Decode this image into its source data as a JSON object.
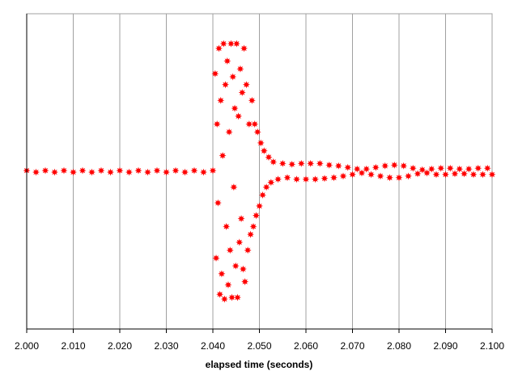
{
  "chart_data": {
    "type": "scatter",
    "x_label": "elapsed time (seconds)",
    "color": "#ff0000",
    "grid": true,
    "xlim": [
      2,
      2.1
    ],
    "ylim": [
      -1,
      1
    ],
    "xticks": [
      {
        "value": 2,
        "label": "2.000"
      },
      {
        "value": 2.01,
        "label": "2.010"
      },
      {
        "value": 2.02,
        "label": "2.020"
      },
      {
        "value": 2.03,
        "label": "2.030"
      },
      {
        "value": 2.04,
        "label": "2.040"
      },
      {
        "value": 2.05,
        "label": "2.050"
      },
      {
        "value": 2.06,
        "label": "2.060"
      },
      {
        "value": 2.07,
        "label": "2.070"
      },
      {
        "value": 2.08,
        "label": "2.080"
      },
      {
        "value": 2.09,
        "label": "2.090"
      },
      {
        "value": 2.1,
        "label": "2.100"
      }
    ],
    "x": [
      2,
      2.002,
      2.004,
      2.006,
      2.008,
      2.01,
      2.012,
      2.014,
      2.016,
      2.018,
      2.02,
      2.022,
      2.024,
      2.026,
      2.028,
      2.03,
      2.032,
      2.034,
      2.036,
      2.038,
      2.04,
      2.0405,
      2.0407,
      2.0409,
      2.0411,
      2.0413,
      2.0415,
      2.0417,
      2.0419,
      2.0421,
      2.0423,
      2.0425,
      2.0427,
      2.0429,
      2.0431,
      2.0433,
      2.0435,
      2.0437,
      2.0439,
      2.0441,
      2.0443,
      2.0445,
      2.0447,
      2.0449,
      2.0451,
      2.0453,
      2.0455,
      2.0457,
      2.0459,
      2.0461,
      2.0463,
      2.0465,
      2.0467,
      2.0469,
      2.0472,
      2.0475,
      2.0478,
      2.0481,
      2.0484,
      2.0487,
      2.049,
      2.0493,
      2.0496,
      2.05,
      2.0503,
      2.0507,
      2.051,
      2.0515,
      2.052,
      2.0525,
      2.053,
      2.054,
      2.055,
      2.056,
      2.057,
      2.058,
      2.059,
      2.06,
      2.061,
      2.062,
      2.063,
      2.064,
      2.065,
      2.066,
      2.067,
      2.068,
      2.069,
      2.07,
      2.071,
      2.072,
      2.073,
      2.074,
      2.075,
      2.076,
      2.077,
      2.078,
      2.079,
      2.08,
      2.081,
      2.082,
      2.083,
      2.084,
      2.085,
      2.086,
      2.087,
      2.088,
      2.089,
      2.09,
      2.091,
      2.092,
      2.093,
      2.094,
      2.095,
      2.096,
      2.097,
      2.098,
      2.099,
      2.1
    ],
    "values": [
      0.005,
      -0.005,
      0.005,
      -0.005,
      0.005,
      -0.005,
      0.005,
      -0.005,
      0.005,
      -0.005,
      0.005,
      -0.005,
      0.005,
      -0.005,
      0.005,
      -0.005,
      0.005,
      -0.005,
      0.005,
      -0.005,
      0.005,
      0.62,
      -0.55,
      0.3,
      -0.2,
      0.78,
      -0.78,
      0.45,
      -0.65,
      0.1,
      0.81,
      -0.81,
      0.55,
      -0.35,
      0.7,
      -0.72,
      0.25,
      -0.5,
      0.81,
      -0.8,
      0.6,
      -0.1,
      0.4,
      -0.6,
      0.81,
      -0.8,
      0.35,
      -0.45,
      0.65,
      -0.3,
      0.5,
      -0.62,
      0.78,
      -0.7,
      0.55,
      -0.5,
      0.3,
      -0.4,
      0.45,
      -0.35,
      0.3,
      -0.28,
      0.25,
      -0.22,
      0.18,
      -0.15,
      0.13,
      -0.1,
      0.09,
      -0.07,
      0.06,
      -0.05,
      0.05,
      -0.04,
      0.045,
      -0.05,
      0.05,
      -0.05,
      0.05,
      -0.05,
      0.05,
      -0.045,
      0.04,
      -0.04,
      0.035,
      -0.03,
      0.025,
      -0.02,
      0.015,
      -0.01,
      0.015,
      -0.02,
      0.025,
      -0.03,
      0.035,
      -0.04,
      0.04,
      -0.04,
      0.035,
      -0.03,
      0.02,
      -0.015,
      0.01,
      -0.01,
      0.015,
      -0.02,
      0.02,
      -0.02,
      0.02,
      -0.015,
      0.015,
      -0.015,
      0.015,
      -0.02,
      0.02,
      -0.02,
      0.02,
      -0.02
    ]
  }
}
